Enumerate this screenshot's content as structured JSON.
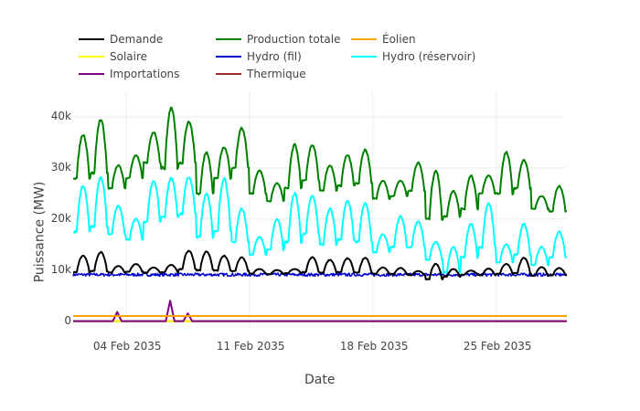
{
  "chart_data": {
    "type": "line",
    "title": "",
    "xlabel": "Date",
    "ylabel": "Puissance (MW)",
    "x_range": [
      "2035-02-01",
      "2035-03-01"
    ],
    "ylim": [
      -1500,
      45000
    ],
    "grid": true,
    "legend_placement": "top",
    "x_ticks": [
      {
        "date": "2035-02-04",
        "label": "04 Feb 2035"
      },
      {
        "date": "2035-02-11",
        "label": "11 Feb 2035"
      },
      {
        "date": "2035-02-18",
        "label": "18 Feb 2035"
      },
      {
        "date": "2035-02-25",
        "label": "25 Feb 2035"
      }
    ],
    "y_ticks": [
      {
        "value": 0,
        "label": "0"
      },
      {
        "value": 10000,
        "label": "10k"
      },
      {
        "value": 20000,
        "label": "20k"
      },
      {
        "value": 30000,
        "label": "30k"
      },
      {
        "value": 40000,
        "label": "40k"
      }
    ],
    "series": [
      {
        "name": "Demande",
        "color": "#000000",
        "daily_peaks": [
          12800,
          13500,
          10800,
          11200,
          10500,
          11000,
          13800,
          13600,
          12800,
          12500,
          10200,
          10000,
          10200,
          12500,
          12000,
          12300,
          12400,
          10500,
          10400,
          9800,
          11200,
          10200,
          9900,
          10300,
          11200,
          12400,
          10600,
          10400,
          12400
        ],
        "daily_troughs": [
          9600,
          9800,
          9500,
          9700,
          9500,
          9600,
          10200,
          10000,
          9900,
          9800,
          9300,
          9200,
          9400,
          9600,
          9500,
          9600,
          9500,
          9300,
          9200,
          9000,
          8200,
          8700,
          9100,
          9000,
          9300,
          9400,
          8900,
          9000,
          9200
        ]
      },
      {
        "name": "Production totale",
        "color": "#008000",
        "daily_peaks": [
          36500,
          39500,
          30500,
          32500,
          37000,
          41800,
          39000,
          33000,
          34000,
          37800,
          29500,
          27000,
          34500,
          34500,
          30500,
          32500,
          33500,
          27500,
          27500,
          31000,
          29500,
          25500,
          28500,
          28500,
          33000,
          31500,
          24500,
          26500,
          33800
        ],
        "daily_troughs": [
          28000,
          29000,
          26000,
          28000,
          31000,
          30000,
          31000,
          25000,
          28000,
          30000,
          25000,
          23500,
          26000,
          27500,
          25500,
          26500,
          27000,
          24000,
          24500,
          25500,
          20000,
          20500,
          22000,
          25000,
          25000,
          26000,
          22000,
          21500,
          24000
        ]
      },
      {
        "name": "Éolien",
        "color": "#ffa500",
        "constant": 1000
      },
      {
        "name": "Solaire",
        "color": "#ffff00",
        "constant": 0
      },
      {
        "name": "Hydro (fil)",
        "color": "#0000cd",
        "mean": 9100,
        "noise": 500
      },
      {
        "name": "Hydro (réservoir)",
        "color": "#00ffff",
        "daily_peaks": [
          26500,
          28200,
          22500,
          20000,
          27500,
          28000,
          28200,
          25000,
          28000,
          22000,
          16500,
          20000,
          25000,
          24500,
          22000,
          23500,
          23000,
          17000,
          20500,
          19500,
          15500,
          14500,
          19000,
          23000,
          15000,
          19000,
          14500,
          17500,
          24000
        ],
        "daily_troughs": [
          17500,
          18500,
          17000,
          16000,
          19500,
          20500,
          21000,
          16500,
          17500,
          15500,
          13000,
          14000,
          15500,
          17000,
          15000,
          16000,
          15500,
          13500,
          14500,
          14500,
          12000,
          9500,
          12500,
          14500,
          11500,
          13000,
          11000,
          12500,
          14500
        ]
      },
      {
        "name": "Importations",
        "color": "#800080",
        "spikes": [
          {
            "date": "2035-02-03",
            "peak": 1800
          },
          {
            "date": "2035-02-06",
            "peak": 4000
          },
          {
            "date": "2035-02-07",
            "peak": 1500
          }
        ]
      },
      {
        "name": "Thermique",
        "color": "#a52a2a",
        "constant": 0
      }
    ]
  }
}
